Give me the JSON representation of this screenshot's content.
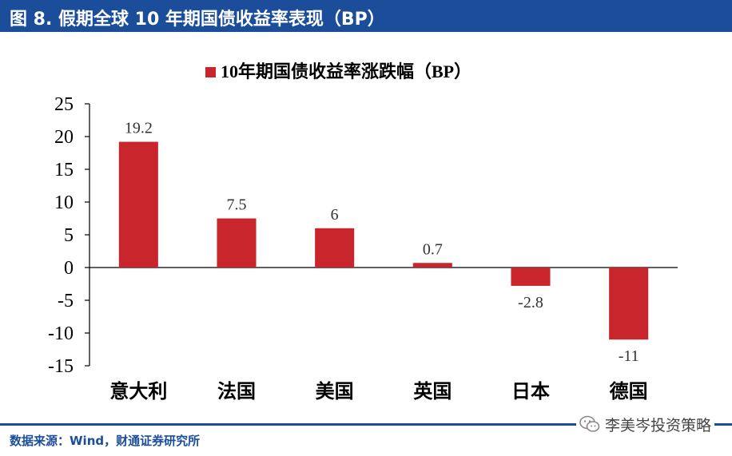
{
  "header": {
    "title": "图 8. 假期全球 10 年期国债收益率表现（BP）"
  },
  "colors": {
    "header_bg": "#1b4d9b",
    "bar": "#c8252c",
    "axis": "#000000"
  },
  "chart_data": {
    "type": "bar",
    "title": "",
    "legend": [
      "10年期国债收益率涨跌幅（BP）"
    ],
    "legend_position": "top-center",
    "categories": [
      "意大利",
      "法国",
      "美国",
      "英国",
      "日本",
      "德国"
    ],
    "series": [
      {
        "name": "10年期国债收益率涨跌幅（BP）",
        "values": [
          19.2,
          7.5,
          6,
          0.7,
          -2.8,
          -11
        ]
      }
    ],
    "data_labels": [
      "19.2",
      "7.5",
      "6",
      "0.7",
      "-2.8",
      "-11"
    ],
    "ylim": [
      -15,
      25
    ],
    "yticks": [
      25,
      20,
      15,
      10,
      5,
      0,
      -5,
      -10,
      -15
    ],
    "grid": false,
    "xlabel": "",
    "ylabel": ""
  },
  "footer": {
    "source": "数据来源：Wind，财通证券研究所",
    "watermark": "李美岑投资策略"
  }
}
